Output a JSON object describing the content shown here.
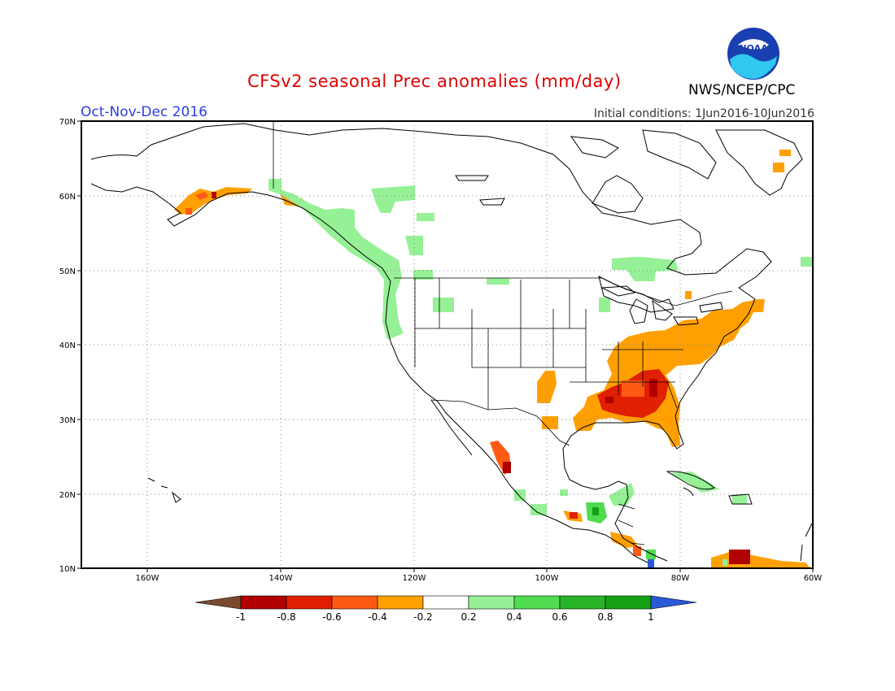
{
  "title": "CFSv2 seasonal Prec anomalies (mm/day)",
  "season": "Oct-Nov-Dec 2016",
  "initial_conditions": "Initial conditions: 1Jun2016-10Jun2016",
  "org": "NWS/NCEP/CPC",
  "logo_text": "NOAA",
  "lat_labels": [
    "70N",
    "60N",
    "50N",
    "40N",
    "30N",
    "20N",
    "10N"
  ],
  "lon_labels": [
    "160W",
    "140W",
    "120W",
    "100W",
    "80W",
    "60W"
  ],
  "colorbar": {
    "labels": [
      "-1",
      "-0.8",
      "-0.6",
      "-0.4",
      "-0.2",
      "0.2",
      "0.4",
      "0.6",
      "0.8",
      "1"
    ],
    "colors": [
      "#7a4a2e",
      "#b00000",
      "#e02000",
      "#ff5a14",
      "#ffa000",
      "#ffffff",
      "#96f096",
      "#50dc50",
      "#28b428",
      "#14a014",
      "#2a5ad8"
    ]
  }
}
